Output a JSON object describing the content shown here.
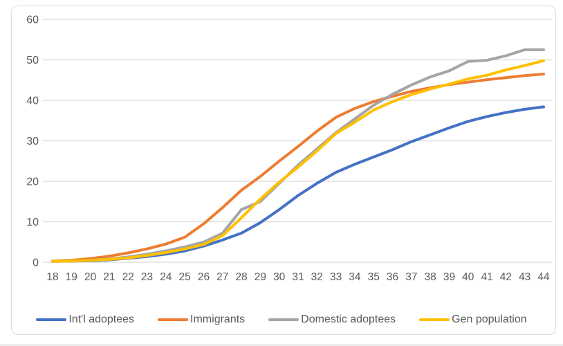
{
  "chart_data": {
    "type": "line",
    "title": "",
    "xlabel": "",
    "ylabel": "",
    "x": [
      18,
      19,
      20,
      21,
      22,
      23,
      24,
      25,
      26,
      27,
      28,
      29,
      30,
      31,
      32,
      33,
      34,
      35,
      36,
      37,
      38,
      39,
      40,
      41,
      42,
      43,
      44
    ],
    "ylim": [
      0,
      60
    ],
    "yticks": [
      0,
      10,
      20,
      30,
      40,
      50,
      60
    ],
    "grid": true,
    "legend_position": "bottom",
    "series": [
      {
        "name": "Int'l adoptees",
        "color": "#4472C4",
        "values": [
          0.2,
          0.3,
          0.4,
          0.6,
          1,
          1.4,
          2,
          2.8,
          4,
          5.5,
          7.2,
          9.8,
          13,
          16.5,
          19.5,
          22.2,
          24.2,
          26,
          27.8,
          29.8,
          31.5,
          33.2,
          34.8,
          36,
          37,
          37.8,
          38.4
        ]
      },
      {
        "name": "Immigrants",
        "color": "#ED7D31",
        "values": [
          0.3,
          0.5,
          0.9,
          1.5,
          2.3,
          3.3,
          4.5,
          6.2,
          9.5,
          13.5,
          17.8,
          21.2,
          25,
          28.6,
          32.4,
          35.8,
          38,
          39.7,
          41,
          42.2,
          43.1,
          43.9,
          44.5,
          45.1,
          45.6,
          46.1,
          46.5
        ]
      },
      {
        "name": "Domestic adoptees",
        "color": "#A5A5A5",
        "values": [
          0.2,
          0.3,
          0.5,
          0.8,
          1.3,
          2,
          2.8,
          3.8,
          5,
          7.2,
          13,
          15,
          19.5,
          24,
          28,
          32,
          35.4,
          38.8,
          41.5,
          43.8,
          45.8,
          47.3,
          49.6,
          49.9,
          51,
          52.5,
          52.5
        ]
      },
      {
        "name": "Gen population",
        "color": "#FFC000",
        "values": [
          0.2,
          0.3,
          0.5,
          0.7,
          1.1,
          1.7,
          2.4,
          3.3,
          4.4,
          6.6,
          11,
          15.6,
          19.8,
          23.5,
          27.5,
          31.8,
          34.6,
          37.6,
          39.7,
          41.4,
          42.8,
          44,
          45.3,
          46.2,
          47.5,
          48.6,
          49.8
        ]
      }
    ],
    "axis_text_color": "#595959",
    "gridline_color": "#D9D9D9",
    "background_color": "#FFFFFF"
  }
}
